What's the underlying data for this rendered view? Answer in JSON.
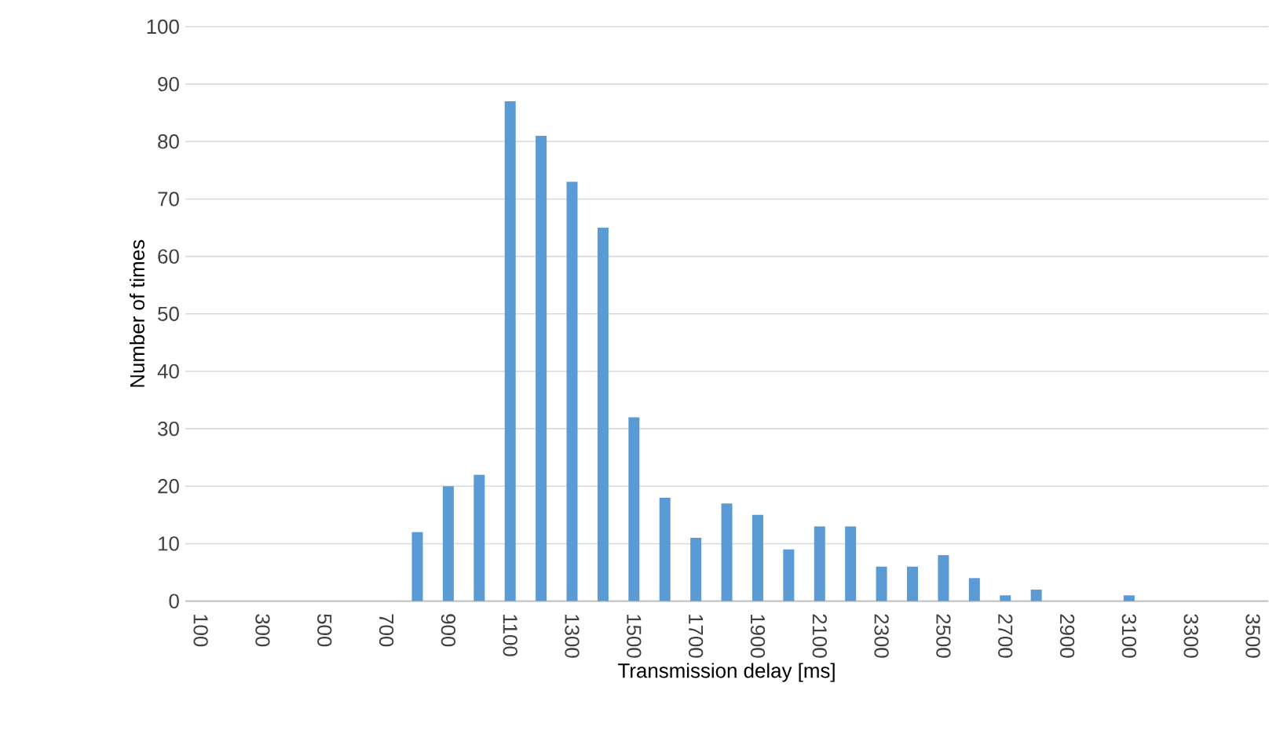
{
  "chart_data": {
    "type": "bar",
    "xlabel": "Transmission delay [ms]",
    "ylabel": "Number of times",
    "categories": [
      "100",
      null,
      "300",
      null,
      "500",
      null,
      "700",
      null,
      "900",
      null,
      "1100",
      null,
      "1300",
      null,
      "1500",
      null,
      "1700",
      null,
      "1900",
      null,
      "2100",
      null,
      "2300",
      null,
      "2500",
      null,
      "2700",
      null,
      "2900",
      null,
      "3100",
      null,
      "3300",
      null,
      "3500"
    ],
    "values": [
      0,
      0,
      0,
      0,
      0,
      0,
      0,
      12,
      20,
      22,
      87,
      81,
      73,
      65,
      32,
      18,
      11,
      17,
      15,
      9,
      13,
      13,
      6,
      6,
      8,
      4,
      1,
      2,
      0,
      0,
      1,
      0,
      0,
      0,
      0
    ],
    "color": "#5b9bd5",
    "ylim": [
      0,
      100
    ],
    "yticks": [
      0,
      10,
      20,
      30,
      40,
      50,
      60,
      70,
      80,
      90,
      100
    ],
    "grid": "y"
  }
}
